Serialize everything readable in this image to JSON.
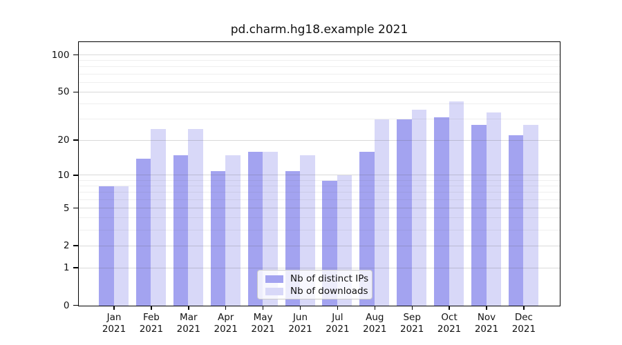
{
  "title": "pd.charm.hg18.example 2021",
  "chart_data": {
    "type": "bar",
    "title": "pd.charm.hg18.example 2021",
    "categories": [
      "Jan\n2021",
      "Feb\n2021",
      "Mar\n2021",
      "Apr\n2021",
      "May\n2021",
      "Jun\n2021",
      "Jul\n2021",
      "Aug\n2021",
      "Sep\n2021",
      "Oct\n2021",
      "Nov\n2021",
      "Dec\n2021"
    ],
    "series": [
      {
        "name": "Nb of distinct IPs",
        "color": "#a3a3f0",
        "values": [
          8,
          14,
          15,
          11,
          16,
          11,
          9,
          16,
          30,
          31,
          27,
          22
        ]
      },
      {
        "name": "Nb of downloads",
        "color": "#d8d8f8",
        "values": [
          8,
          25,
          25,
          15,
          16,
          15,
          10,
          30,
          36,
          42,
          34,
          27
        ]
      }
    ],
    "xlabel": "",
    "ylabel": "",
    "yscale": "log1p",
    "ylim": [
      0,
      126
    ],
    "yticks": [
      0,
      1,
      2,
      5,
      10,
      20,
      50,
      100
    ],
    "yticks_minor": [
      3,
      4,
      6,
      7,
      8,
      9,
      30,
      40,
      60,
      70,
      80,
      90
    ],
    "grid": true,
    "legend": {
      "position": "bottom-center",
      "entries": [
        "Nb of distinct IPs",
        "Nb of downloads"
      ]
    }
  },
  "colors": {
    "bar_distinct_ips": "#a3a3f0",
    "bar_downloads": "#d8d8f8",
    "axis": "#000000",
    "grid_major": "#d9d9d9",
    "grid_minor": "#ececec",
    "background": "#ffffff"
  }
}
